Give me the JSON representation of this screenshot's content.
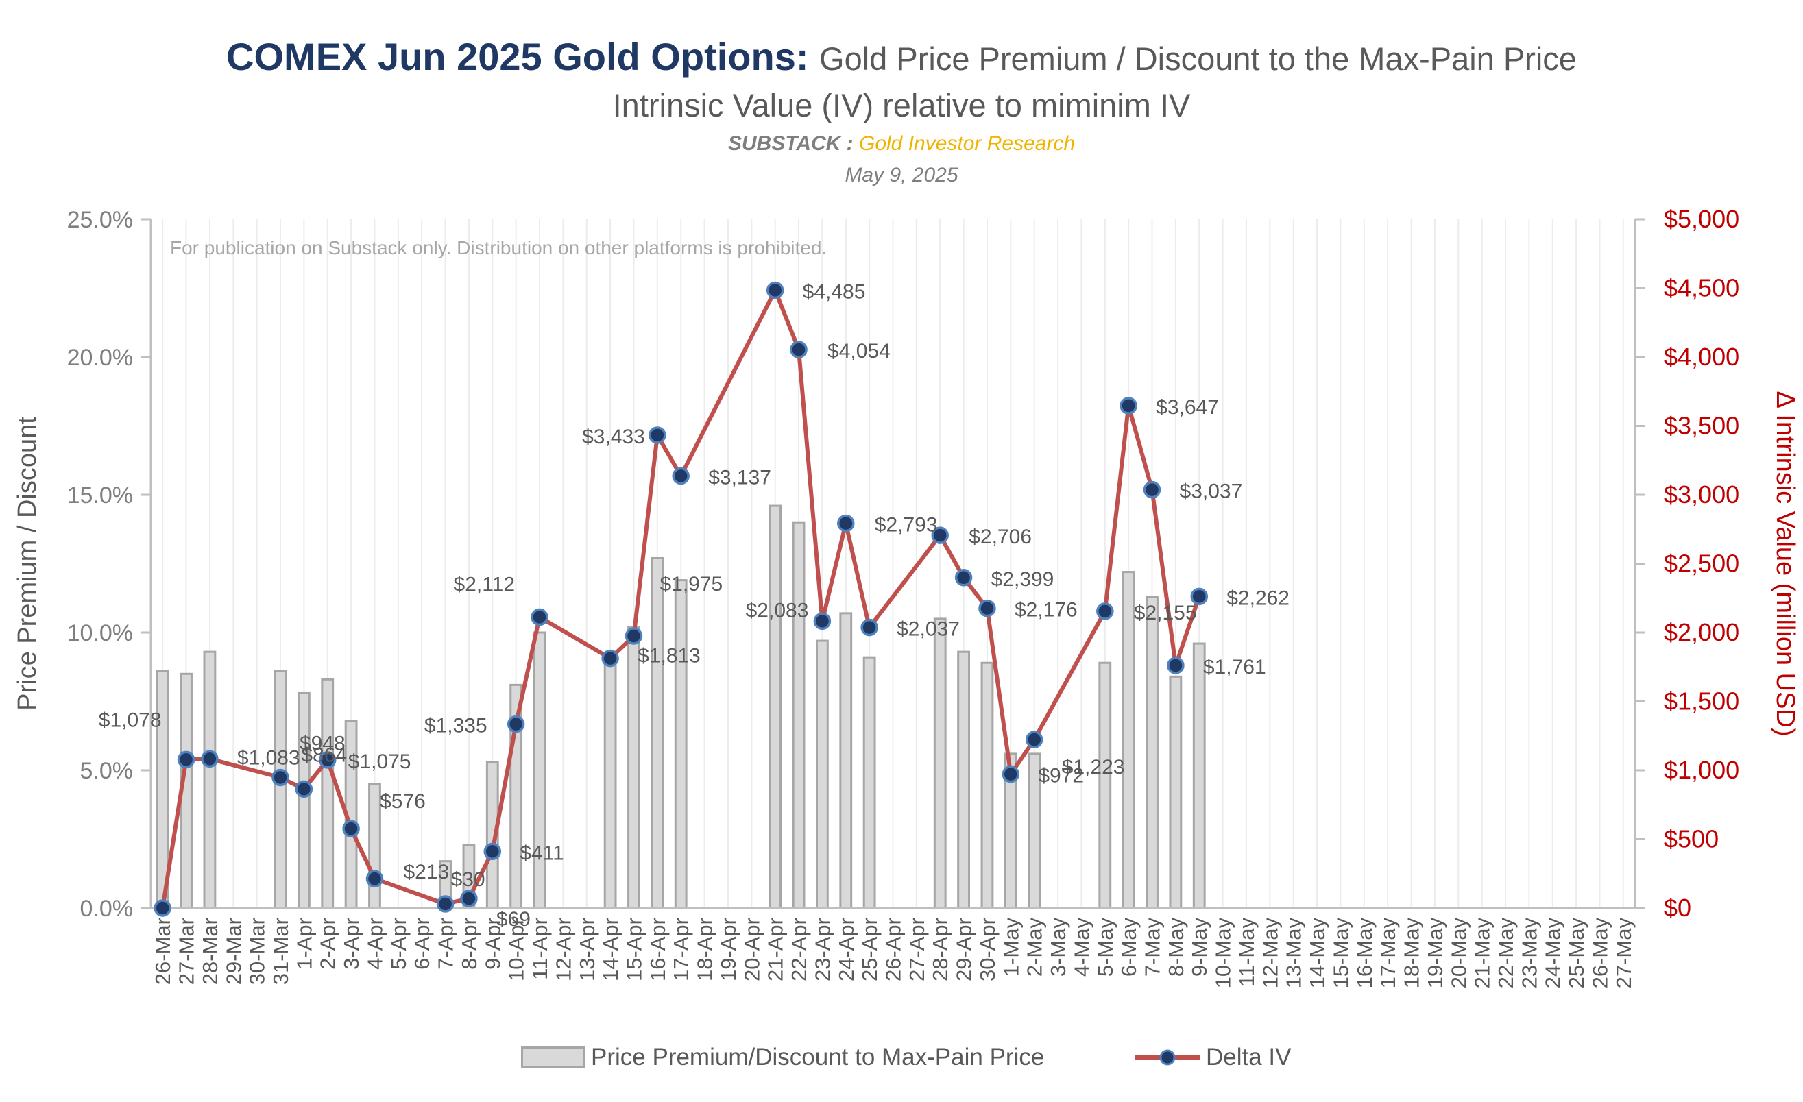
{
  "title": {
    "bold": "COMEX Jun 2025 Gold Options:",
    "rest": "Gold Price Premium / Discount to the Max-Pain Price",
    "subtitle": "Intrinsic Value (IV) relative to miminim IV",
    "source_label": "SUBSTACK :",
    "source_name": "Gold Investor Research",
    "date": "May 9, 2025"
  },
  "notice": "For publication on Substack only. Distribution on other platforms is prohibited.",
  "colors": {
    "bar_fill": "#d9d9d9",
    "bar_stroke": "#a6a6a6",
    "line": "#c0504d",
    "marker_fill": "#1f3864",
    "marker_stroke": "#4f81bd",
    "right_axis": "#c00000",
    "title_bold": "#1f3864",
    "brand": "#f0b400"
  },
  "chart_data": {
    "type": "bar+line",
    "categories": [
      "26-Mar",
      "27-Mar",
      "28-Mar",
      "29-Mar",
      "30-Mar",
      "31-Mar",
      "1-Apr",
      "2-Apr",
      "3-Apr",
      "4-Apr",
      "5-Apr",
      "6-Apr",
      "7-Apr",
      "8-Apr",
      "9-Apr",
      "10-Apr",
      "11-Apr",
      "12-Apr",
      "13-Apr",
      "14-Apr",
      "15-Apr",
      "16-Apr",
      "17-Apr",
      "18-Apr",
      "19-Apr",
      "20-Apr",
      "21-Apr",
      "22-Apr",
      "23-Apr",
      "24-Apr",
      "25-Apr",
      "26-Apr",
      "27-Apr",
      "28-Apr",
      "29-Apr",
      "30-Apr",
      "1-May",
      "2-May",
      "3-May",
      "4-May",
      "5-May",
      "6-May",
      "7-May",
      "8-May",
      "9-May",
      "10-May",
      "11-May",
      "12-May",
      "13-May",
      "14-May",
      "15-May",
      "16-May",
      "17-May",
      "18-May",
      "19-May",
      "20-May",
      "21-May",
      "22-May",
      "23-May",
      "24-May",
      "25-May",
      "26-May",
      "27-May"
    ],
    "y_left": {
      "label": "Price Premium / Discount",
      "range": [
        0,
        25
      ],
      "ticks": [
        "0.0%",
        "5.0%",
        "10.0%",
        "15.0%",
        "20.0%",
        "25.0%"
      ]
    },
    "y_right": {
      "label": "Δ Intrinsic Value (million USD)",
      "range": [
        0,
        5000
      ],
      "ticks": [
        "$0",
        "$500",
        "$1,000",
        "$1,500",
        "$2,000",
        "$2,500",
        "$3,000",
        "$3,500",
        "$4,000",
        "$4,500",
        "$5,000"
      ]
    },
    "series": [
      {
        "name": "Price Premium/Discount to Max-Pain Price",
        "type": "bar",
        "axis": "left",
        "values": [
          8.6,
          8.5,
          9.3,
          null,
          null,
          8.6,
          7.8,
          8.3,
          6.8,
          4.5,
          null,
          null,
          1.7,
          2.3,
          5.3,
          8.1,
          10.0,
          null,
          null,
          9.0,
          10.2,
          12.7,
          11.9,
          null,
          null,
          null,
          14.6,
          14.0,
          9.7,
          10.7,
          9.1,
          null,
          null,
          10.5,
          9.3,
          8.9,
          5.6,
          5.6,
          null,
          null,
          8.9,
          12.2,
          11.3,
          8.4,
          9.6,
          null,
          null,
          null,
          null,
          null,
          null,
          null,
          null,
          null,
          null,
          null,
          null,
          null,
          null,
          null,
          null,
          null,
          null
        ]
      },
      {
        "name": "Delta IV",
        "type": "line",
        "axis": "right",
        "values": [
          0,
          1078,
          1083,
          null,
          null,
          948,
          864,
          1075,
          576,
          213,
          null,
          null,
          30,
          69,
          411,
          1335,
          2112,
          null,
          null,
          1813,
          1975,
          3433,
          3137,
          null,
          null,
          null,
          4485,
          4054,
          2083,
          2793,
          2037,
          null,
          null,
          2706,
          2399,
          2176,
          972,
          1223,
          null,
          null,
          2155,
          3647,
          3037,
          1761,
          2262,
          null,
          null,
          null,
          null,
          null,
          null,
          null,
          null,
          null,
          null,
          null,
          null,
          null,
          null,
          null,
          null,
          null,
          null
        ],
        "labels": [
          "",
          "$1,078",
          "$1,083",
          "",
          "",
          "$948",
          "$864",
          "$1,075",
          "$576",
          "$213",
          "",
          "",
          "$30",
          "$69",
          "$411",
          "$1,335",
          "$2,112",
          "",
          "",
          "$1,813",
          "$1,975",
          "$3,433",
          "$3,137",
          "",
          "",
          "",
          "$4,485",
          "$4,054",
          "$2,083",
          "$2,793",
          "$2,037",
          "",
          "",
          "$2,706",
          "$2,399",
          "$2,176",
          "$972",
          "$1,223",
          "",
          "",
          "$2,155",
          "$3,647",
          "$3,037",
          "$1,761",
          "$2,262",
          "",
          "",
          "",
          "",
          "",
          "",
          "",
          "",
          "",
          "",
          "",
          "",
          "",
          "",
          "",
          "",
          "",
          ""
        ]
      }
    ],
    "gridlines": "vertical",
    "legend_position": "bottom"
  }
}
